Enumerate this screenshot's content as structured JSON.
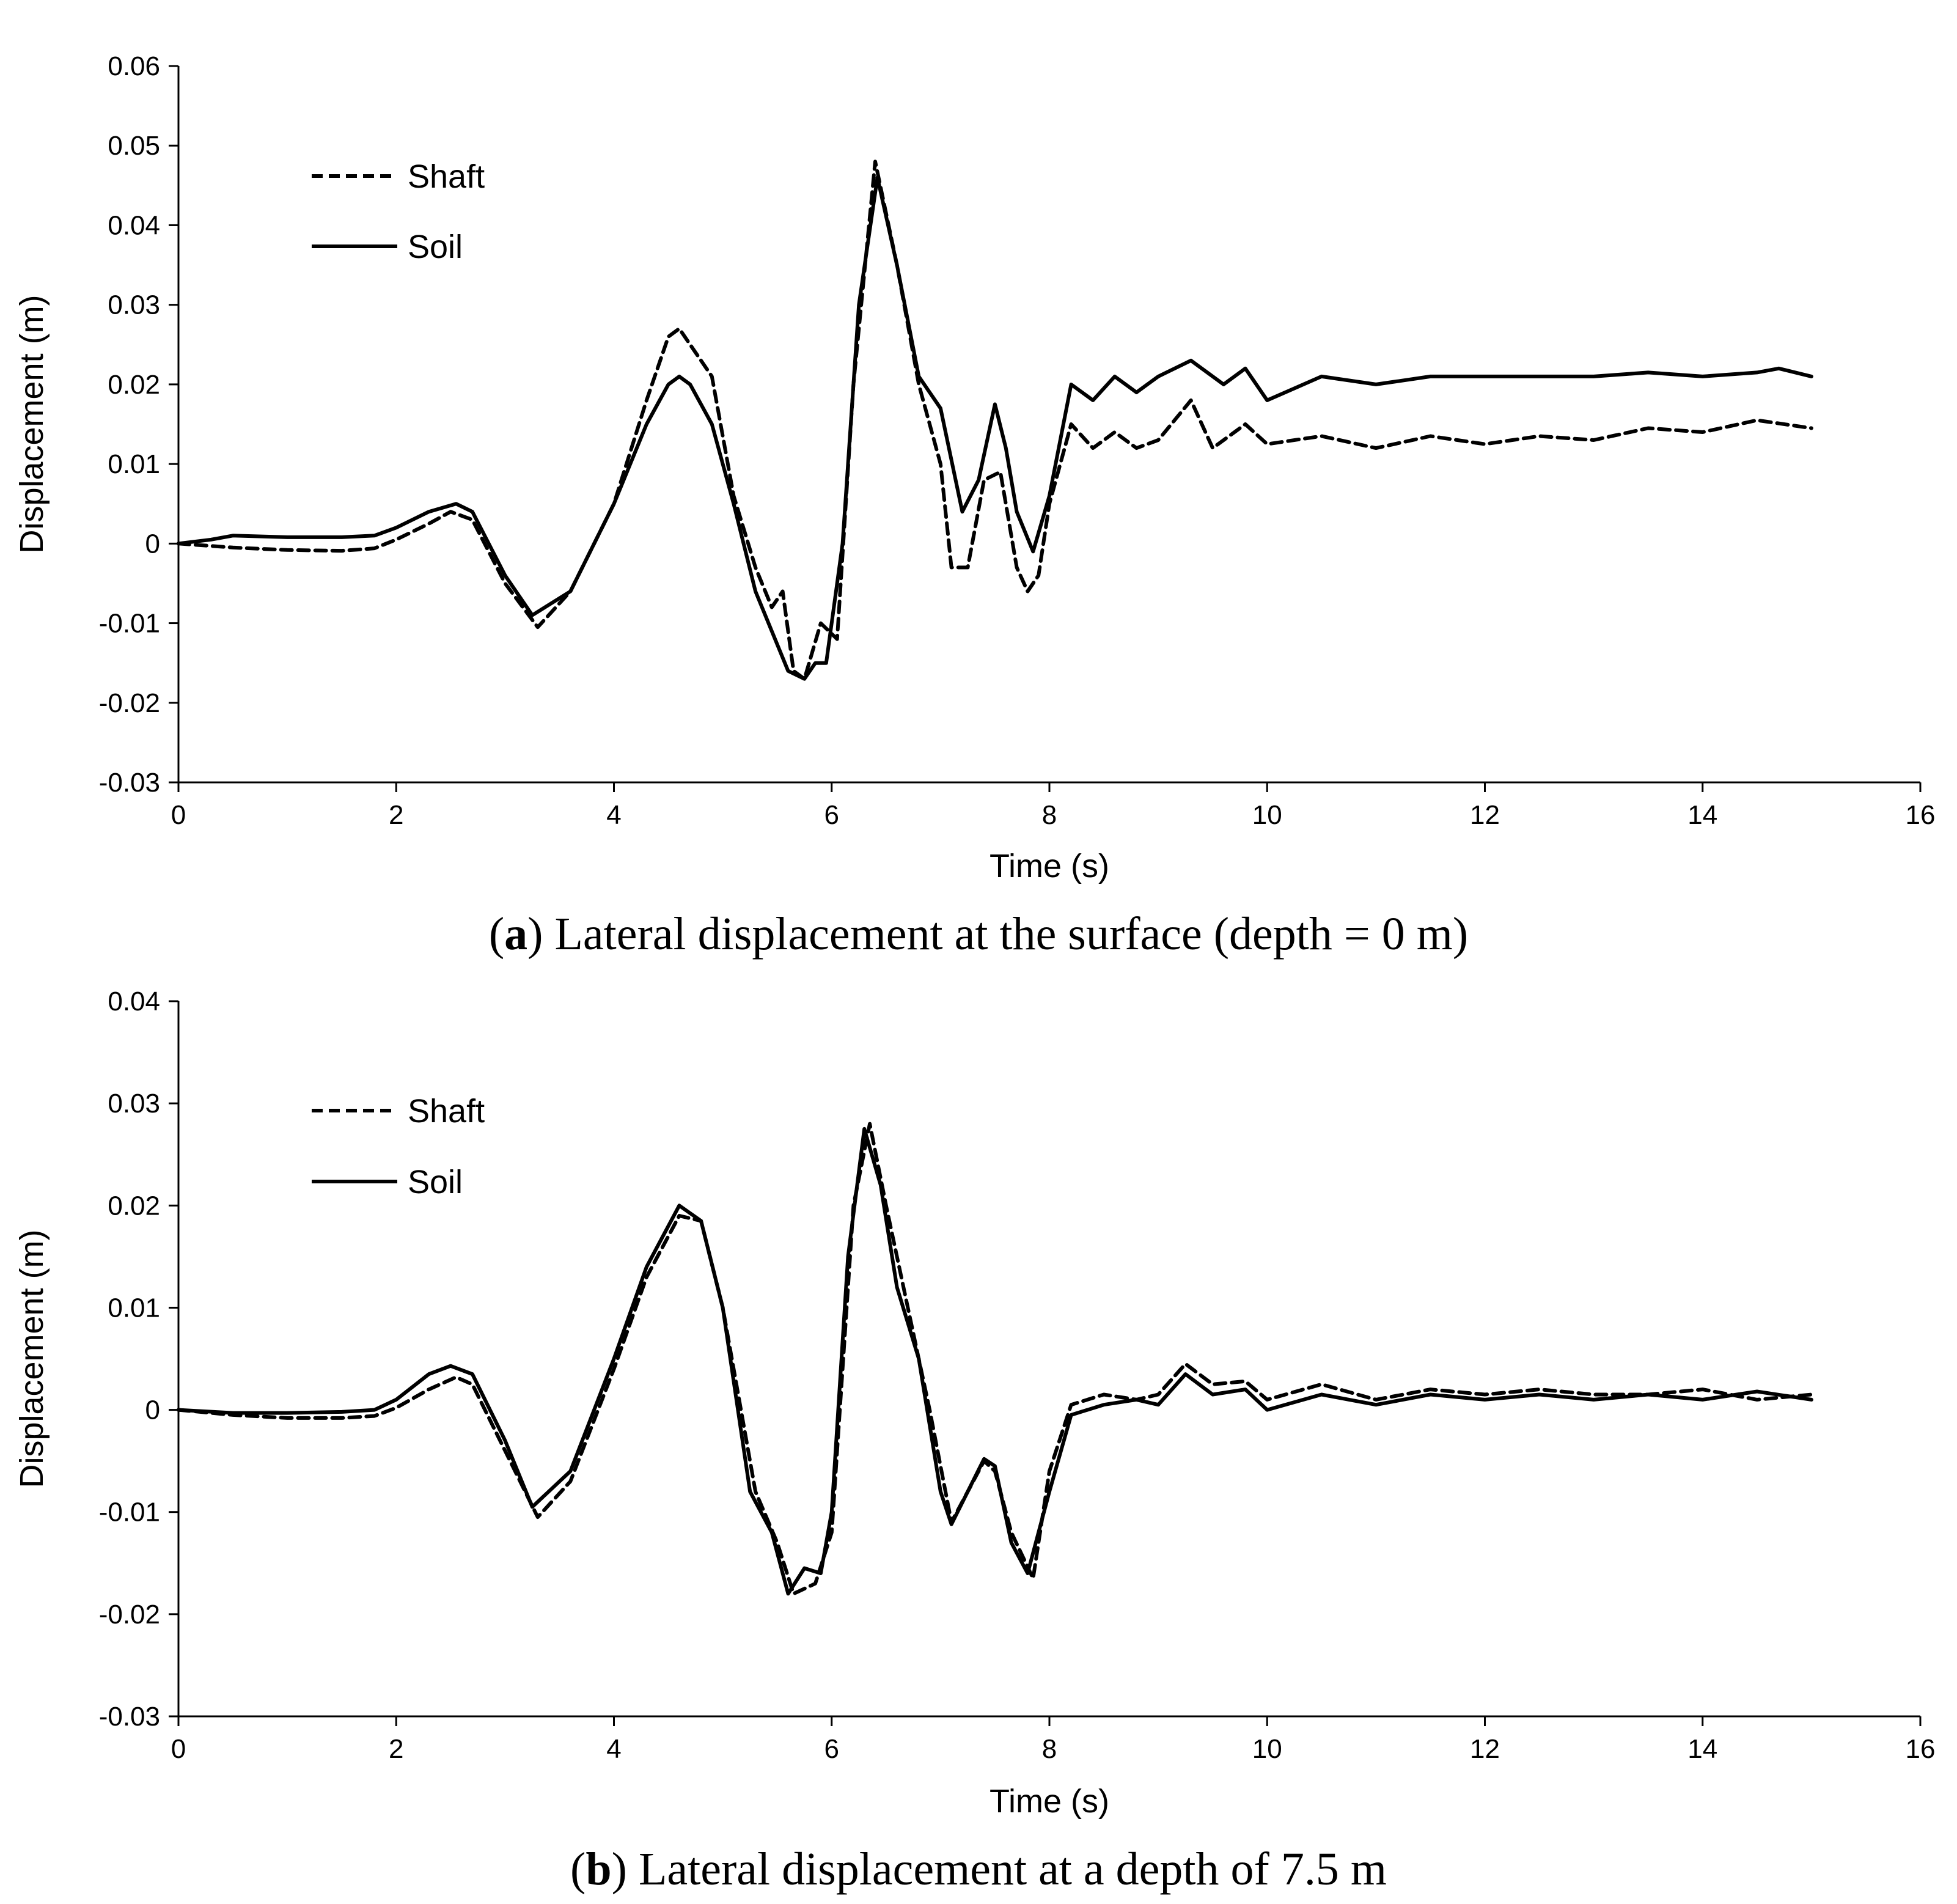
{
  "chart_data": [
    {
      "type": "line",
      "panel": "a",
      "caption": {
        "open": "(",
        "letter": "a",
        "text": ") Lateral displacement at the surface (depth = 0 m)"
      },
      "xlabel": "Time (s)",
      "ylabel": "Displacement (m)",
      "xlim": [
        0,
        16
      ],
      "ylim": [
        -0.03,
        0.06
      ],
      "xticks": [
        0,
        2,
        4,
        6,
        8,
        10,
        12,
        14,
        16
      ],
      "yticks": [
        -0.03,
        -0.02,
        -0.01,
        0,
        0.01,
        0.02,
        0.03,
        0.04,
        0.05,
        0.06
      ],
      "xtick_labels": [
        "0",
        "2",
        "4",
        "6",
        "8",
        "10",
        "12",
        "14",
        "16"
      ],
      "ytick_labels": [
        "-0.03",
        "-0.02",
        "-0.01",
        "0",
        "0.01",
        "0.02",
        "0.03",
        "0.04",
        "0.05",
        "0.06"
      ],
      "legend": [
        "Shaft",
        "Soil"
      ],
      "series": [
        {
          "name": "Shaft",
          "style": "dashed",
          "x": [
            0,
            0.5,
            1.0,
            1.5,
            1.8,
            2.0,
            2.3,
            2.5,
            2.7,
            3.0,
            3.3,
            3.6,
            4.0,
            4.3,
            4.5,
            4.6,
            4.7,
            4.9,
            5.1,
            5.3,
            5.45,
            5.55,
            5.65,
            5.75,
            5.9,
            6.05,
            6.2,
            6.4,
            6.6,
            6.8,
            7.0,
            7.1,
            7.25,
            7.4,
            7.55,
            7.7,
            7.8,
            7.9,
            8.0,
            8.2,
            8.4,
            8.6,
            8.8,
            9.0,
            9.3,
            9.5,
            9.8,
            10.0,
            10.5,
            11.0,
            11.5,
            12.0,
            12.5,
            13.0,
            13.5,
            14.0,
            14.5,
            15.0
          ],
          "y": [
            0,
            -0.0005,
            -0.0008,
            -0.0009,
            -0.0006,
            0.0005,
            0.0025,
            0.004,
            0.003,
            -0.005,
            -0.0105,
            -0.006,
            0.005,
            0.018,
            0.026,
            0.027,
            0.025,
            0.021,
            0.006,
            -0.003,
            -0.008,
            -0.006,
            -0.016,
            -0.017,
            -0.01,
            -0.012,
            0.02,
            0.048,
            0.035,
            0.02,
            0.01,
            -0.003,
            -0.003,
            0.008,
            0.009,
            -0.003,
            -0.006,
            -0.004,
            0.005,
            0.015,
            0.012,
            0.014,
            0.012,
            0.013,
            0.018,
            0.012,
            0.015,
            0.0125,
            0.0135,
            0.012,
            0.0135,
            0.0125,
            0.0135,
            0.013,
            0.0145,
            0.014,
            0.0155,
            0.0145
          ]
        },
        {
          "name": "Soil",
          "style": "solid",
          "x": [
            0,
            0.3,
            0.5,
            1.0,
            1.5,
            1.8,
            2.0,
            2.3,
            2.55,
            2.7,
            3.0,
            3.25,
            3.6,
            4.0,
            4.3,
            4.5,
            4.6,
            4.7,
            4.9,
            5.1,
            5.3,
            5.45,
            5.6,
            5.75,
            5.85,
            5.95,
            6.1,
            6.25,
            6.42,
            6.6,
            6.8,
            7.0,
            7.2,
            7.35,
            7.5,
            7.6,
            7.7,
            7.85,
            8.0,
            8.2,
            8.4,
            8.6,
            8.8,
            9.0,
            9.3,
            9.6,
            9.8,
            10.0,
            10.5,
            11.0,
            11.5,
            12.0,
            12.5,
            13.0,
            13.5,
            14.0,
            14.5,
            14.7,
            15.0
          ],
          "y": [
            0,
            0.0005,
            0.001,
            0.0008,
            0.0008,
            0.001,
            0.002,
            0.004,
            0.005,
            0.004,
            -0.004,
            -0.009,
            -0.006,
            0.005,
            0.015,
            0.02,
            0.021,
            0.02,
            0.015,
            0.005,
            -0.006,
            -0.011,
            -0.016,
            -0.017,
            -0.015,
            -0.015,
            0.0,
            0.03,
            0.046,
            0.035,
            0.021,
            0.017,
            0.004,
            0.008,
            0.0175,
            0.012,
            0.004,
            -0.001,
            0.006,
            0.02,
            0.018,
            0.021,
            0.019,
            0.021,
            0.023,
            0.02,
            0.022,
            0.018,
            0.021,
            0.02,
            0.021,
            0.021,
            0.021,
            0.021,
            0.0215,
            0.021,
            0.0215,
            0.022,
            0.021
          ]
        }
      ]
    },
    {
      "type": "line",
      "panel": "b",
      "caption": {
        "open": "(",
        "letter": "b",
        "text": ") Lateral displacement at a depth of 7.5 m"
      },
      "xlabel": "Time (s)",
      "ylabel": "Displacement (m)",
      "xlim": [
        0,
        16
      ],
      "ylim": [
        -0.03,
        0.04
      ],
      "xticks": [
        0,
        2,
        4,
        6,
        8,
        10,
        12,
        14,
        16
      ],
      "yticks": [
        -0.03,
        -0.02,
        -0.01,
        0,
        0.01,
        0.02,
        0.03,
        0.04
      ],
      "xtick_labels": [
        "0",
        "2",
        "4",
        "6",
        "8",
        "10",
        "12",
        "14",
        "16"
      ],
      "ytick_labels": [
        "-0.03",
        "-0.02",
        "-0.01",
        "0",
        "0.01",
        "0.02",
        "0.03",
        "0.04"
      ],
      "legend": [
        "Shaft",
        "Soil"
      ],
      "series": [
        {
          "name": "Shaft",
          "style": "dashed",
          "x": [
            0,
            0.5,
            1.0,
            1.5,
            1.8,
            2.0,
            2.3,
            2.55,
            2.7,
            3.0,
            3.3,
            3.6,
            4.0,
            4.3,
            4.6,
            4.8,
            5.0,
            5.3,
            5.5,
            5.65,
            5.75,
            5.85,
            6.0,
            6.2,
            6.35,
            6.5,
            6.7,
            6.9,
            7.1,
            7.25,
            7.4,
            7.5,
            7.65,
            7.85,
            8.0,
            8.2,
            8.5,
            8.8,
            9.0,
            9.25,
            9.5,
            9.8,
            10.0,
            10.5,
            11.0,
            11.5,
            12.0,
            12.5,
            13.0,
            13.5,
            14.0,
            14.5,
            15.0
          ],
          "y": [
            0,
            -0.0005,
            -0.0008,
            -0.0008,
            -0.0006,
            0.0002,
            0.002,
            0.0032,
            0.0025,
            -0.004,
            -0.0105,
            -0.007,
            0.004,
            0.013,
            0.019,
            0.0185,
            0.01,
            -0.008,
            -0.013,
            -0.018,
            -0.0175,
            -0.017,
            -0.012,
            0.02,
            0.028,
            0.02,
            0.01,
            0.0,
            -0.011,
            -0.008,
            -0.005,
            -0.006,
            -0.012,
            -0.0165,
            -0.006,
            0.0005,
            0.0015,
            0.001,
            0.0015,
            0.0045,
            0.0025,
            0.0028,
            0.001,
            0.0025,
            0.001,
            0.002,
            0.0015,
            0.002,
            0.0015,
            0.0015,
            0.002,
            0.001,
            0.0015
          ]
        },
        {
          "name": "Soil",
          "style": "solid",
          "x": [
            0,
            0.5,
            1.0,
            1.5,
            1.8,
            2.0,
            2.3,
            2.5,
            2.7,
            3.0,
            3.25,
            3.6,
            4.0,
            4.3,
            4.6,
            4.8,
            5.0,
            5.25,
            5.45,
            5.6,
            5.75,
            5.9,
            6.0,
            6.15,
            6.3,
            6.45,
            6.6,
            6.8,
            7.0,
            7.1,
            7.25,
            7.4,
            7.5,
            7.65,
            7.8,
            8.0,
            8.2,
            8.5,
            8.8,
            9.0,
            9.25,
            9.5,
            9.8,
            10.0,
            10.5,
            11.0,
            11.5,
            12.0,
            12.5,
            13.0,
            13.5,
            14.0,
            14.5,
            15.0
          ],
          "y": [
            0,
            -0.0003,
            -0.0003,
            -0.0002,
            0.0,
            0.001,
            0.0035,
            0.0043,
            0.0035,
            -0.003,
            -0.0095,
            -0.006,
            0.005,
            0.014,
            0.02,
            0.0185,
            0.01,
            -0.008,
            -0.012,
            -0.018,
            -0.0155,
            -0.016,
            -0.01,
            0.015,
            0.0275,
            0.022,
            0.012,
            0.005,
            -0.008,
            -0.0112,
            -0.008,
            -0.0048,
            -0.0055,
            -0.013,
            -0.016,
            -0.008,
            -0.0005,
            0.0005,
            0.001,
            0.0005,
            0.0035,
            0.0015,
            0.002,
            0.0,
            0.0015,
            0.0005,
            0.0015,
            0.001,
            0.0015,
            0.001,
            0.0015,
            0.001,
            0.0018,
            0.001
          ]
        }
      ]
    }
  ]
}
